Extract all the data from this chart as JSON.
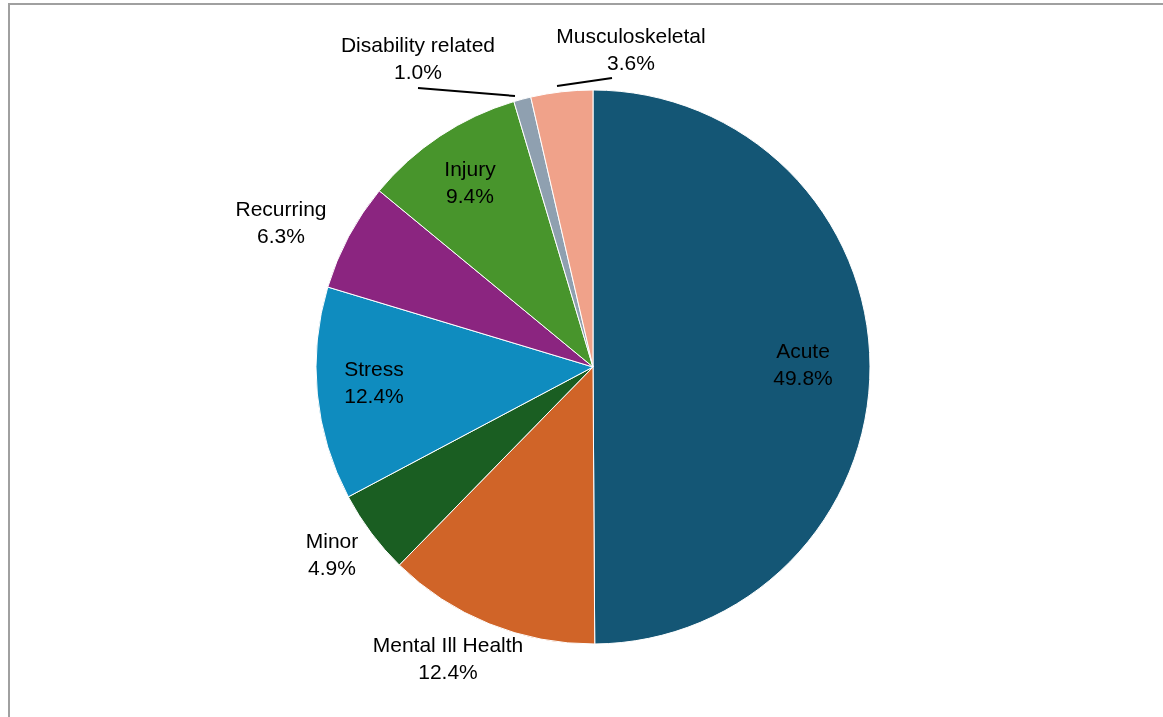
{
  "chart_data": {
    "type": "pie",
    "categories": [
      "Acute",
      "Mental Ill Health",
      "Minor",
      "Stress",
      "Recurring",
      "Injury",
      "Disability related",
      "Musculoskeletal"
    ],
    "values": [
      49.8,
      12.4,
      4.9,
      12.4,
      6.3,
      9.4,
      1.0,
      3.6
    ],
    "value_labels": [
      "49.8%",
      "12.4%",
      "4.9%",
      "12.4%",
      "6.3%",
      "9.4%",
      "1.0%",
      "3.6%"
    ],
    "colors": [
      "#145675",
      "#d06428",
      "#1a5e22",
      "#0f8cbf",
      "#8b2580",
      "#48952c",
      "#8fa0b0",
      "#f0a28a"
    ],
    "legend": false
  }
}
